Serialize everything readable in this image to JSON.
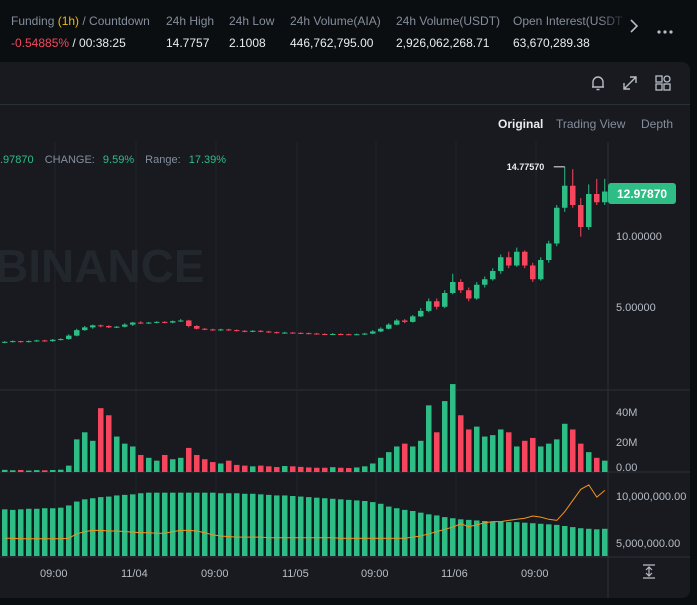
{
  "stats": [
    {
      "label_main": "Funding ",
      "label_accent": "(1h)",
      "label_rest": " / Countdown",
      "value_neg": "-0.54885%",
      "value_rest": " / 00:38:25"
    },
    {
      "label": "24h High",
      "value": "14.7757"
    },
    {
      "label": "24h Low",
      "value": "2.1008"
    },
    {
      "label": "24h Volume(AIA)",
      "value": "446,762,795.00"
    },
    {
      "label": "24h Volume(USDT)",
      "value": "2,926,062,268.71"
    },
    {
      "label": "Open Interest(USDT)",
      "value": "63,670,289.38"
    }
  ],
  "nav": {
    "more_icon": "chevron-right-icon",
    "menu_icon": "ellipsis-icon"
  },
  "toolbar": {
    "icons": [
      "bell-icon",
      "expand-icon",
      "layout-grid-icon"
    ]
  },
  "tabs": [
    "Original",
    "Trading View",
    "Depth"
  ],
  "active_tab": "Original",
  "info": {
    "price": ".97870",
    "change_label": "CHANGE:",
    "change_value": "9.59%",
    "range_label": "Range:",
    "range_value": "17.39%"
  },
  "watermark": "BINANCE",
  "high_marker": "14.77570",
  "last_price": "12.97870",
  "price_axis": [
    "10.00000",
    "5.00000"
  ],
  "volume_axis": [
    "40M",
    "20M",
    "0.00"
  ],
  "oi_axis": [
    "10,000,000.00",
    "5,000,000.00"
  ],
  "time_axis": [
    "09:00",
    "11/04",
    "09:00",
    "11/05",
    "09:00",
    "11/06",
    "09:00"
  ],
  "colors": {
    "up": "#2ebd85",
    "down": "#f6465d",
    "accent": "#f0b90b",
    "line": "#f7931a",
    "last_price_bg": "#2ebd85"
  },
  "chart_data": {
    "type": "candlestick",
    "price_ylim": [
      0,
      16
    ],
    "candles": [
      [
        2.0,
        2.05,
        2.1,
        1.95
      ],
      [
        2.05,
        2.1,
        2.15,
        2.0
      ],
      [
        2.1,
        2.05,
        2.12,
        1.98
      ],
      [
        2.05,
        2.1,
        2.15,
        2.0
      ],
      [
        2.1,
        2.15,
        2.2,
        2.05
      ],
      [
        2.15,
        2.1,
        2.2,
        2.05
      ],
      [
        2.1,
        2.2,
        2.25,
        2.05
      ],
      [
        2.2,
        2.25,
        2.3,
        2.15
      ],
      [
        2.25,
        2.5,
        2.6,
        2.2
      ],
      [
        2.5,
        2.9,
        3.0,
        2.45
      ],
      [
        2.9,
        3.1,
        3.2,
        2.85
      ],
      [
        3.1,
        3.25,
        3.3,
        3.0
      ],
      [
        3.25,
        3.2,
        3.3,
        3.1
      ],
      [
        3.2,
        3.1,
        3.25,
        3.05
      ],
      [
        3.1,
        3.15,
        3.2,
        3.05
      ],
      [
        3.15,
        3.3,
        3.4,
        3.1
      ],
      [
        3.3,
        3.45,
        3.5,
        3.2
      ],
      [
        3.45,
        3.4,
        3.55,
        3.35
      ],
      [
        3.4,
        3.45,
        3.5,
        3.35
      ],
      [
        3.45,
        3.5,
        3.55,
        3.4
      ],
      [
        3.5,
        3.45,
        3.55,
        3.4
      ],
      [
        3.45,
        3.55,
        3.6,
        3.4
      ],
      [
        3.55,
        3.6,
        3.7,
        3.5
      ],
      [
        3.6,
        3.2,
        3.65,
        3.1
      ],
      [
        3.2,
        3.0,
        3.25,
        2.95
      ],
      [
        3.0,
        2.95,
        3.05,
        2.9
      ],
      [
        2.95,
        2.9,
        3.0,
        2.85
      ],
      [
        2.9,
        2.95,
        3.0,
        2.85
      ],
      [
        2.95,
        2.9,
        3.0,
        2.85
      ],
      [
        2.9,
        2.85,
        2.95,
        2.8
      ],
      [
        2.85,
        2.8,
        2.9,
        2.75
      ],
      [
        2.8,
        2.85,
        2.9,
        2.75
      ],
      [
        2.85,
        2.8,
        2.9,
        2.75
      ],
      [
        2.8,
        2.75,
        2.85,
        2.7
      ],
      [
        2.75,
        2.7,
        2.8,
        2.65
      ],
      [
        2.7,
        2.72,
        2.78,
        2.65
      ],
      [
        2.72,
        2.7,
        2.76,
        2.65
      ],
      [
        2.7,
        2.68,
        2.74,
        2.62
      ],
      [
        2.68,
        2.65,
        2.72,
        2.6
      ],
      [
        2.65,
        2.62,
        2.7,
        2.58
      ],
      [
        2.62,
        2.6,
        2.66,
        2.55
      ],
      [
        2.6,
        2.62,
        2.68,
        2.56
      ],
      [
        2.62,
        2.6,
        2.66,
        2.55
      ],
      [
        2.6,
        2.58,
        2.64,
        2.54
      ],
      [
        2.58,
        2.6,
        2.65,
        2.55
      ],
      [
        2.6,
        2.65,
        2.7,
        2.55
      ],
      [
        2.65,
        2.8,
        2.9,
        2.6
      ],
      [
        2.8,
        3.0,
        3.1,
        2.75
      ],
      [
        3.0,
        3.3,
        3.4,
        2.95
      ],
      [
        3.3,
        3.6,
        3.7,
        3.25
      ],
      [
        3.6,
        3.5,
        3.7,
        3.4
      ],
      [
        3.5,
        3.9,
        4.0,
        3.45
      ],
      [
        3.9,
        4.3,
        4.5,
        3.85
      ],
      [
        4.3,
        5.0,
        5.2,
        4.2
      ],
      [
        5.0,
        4.6,
        5.2,
        4.4
      ],
      [
        4.6,
        5.6,
        5.8,
        4.5
      ],
      [
        5.6,
        6.4,
        7.0,
        5.5
      ],
      [
        6.4,
        5.8,
        6.6,
        5.6
      ],
      [
        5.8,
        5.2,
        6.0,
        5.0
      ],
      [
        5.2,
        6.2,
        6.4,
        5.1
      ],
      [
        6.2,
        6.6,
        6.8,
        6.0
      ],
      [
        6.6,
        7.2,
        7.4,
        6.5
      ],
      [
        7.2,
        8.2,
        8.4,
        7.0
      ],
      [
        8.2,
        7.6,
        8.6,
        7.4
      ],
      [
        7.6,
        8.6,
        8.9,
        7.5
      ],
      [
        8.6,
        7.6,
        8.7,
        7.4
      ],
      [
        7.6,
        6.6,
        7.8,
        6.4
      ],
      [
        6.6,
        8.0,
        8.2,
        6.5
      ],
      [
        8.0,
        9.2,
        9.4,
        7.8
      ],
      [
        9.2,
        11.8,
        12.0,
        9.0
      ],
      [
        11.8,
        13.4,
        14.7757,
        11.5
      ],
      [
        13.4,
        12.0,
        14.6,
        11.8
      ],
      [
        12.0,
        10.4,
        12.5,
        9.7
      ],
      [
        10.4,
        12.8,
        13.5,
        10.2
      ],
      [
        12.8,
        12.2,
        13.9,
        12.0
      ],
      [
        12.2,
        12.9787,
        13.9,
        12.0
      ]
    ],
    "volume_ylim": [
      0,
      55000000
    ],
    "volume": [
      1500000,
      1200000,
      1400000,
      1000000,
      1300000,
      1200000,
      1400000,
      1600000,
      4500000,
      23000000,
      28000000,
      22000000,
      45000000,
      40000000,
      25000000,
      20000000,
      18000000,
      12000000,
      10000000,
      8000000,
      12000000,
      9000000,
      10000000,
      17000000,
      12000000,
      9000000,
      7000000,
      6000000,
      8000000,
      5000000,
      4500000,
      4000000,
      4500000,
      4000000,
      3500000,
      4200000,
      4000000,
      3600000,
      3200000,
      3000000,
      3000000,
      3400000,
      3000000,
      2800000,
      3200000,
      4000000,
      6000000,
      10000000,
      14000000,
      18000000,
      20000000,
      18000000,
      22000000,
      47000000,
      28000000,
      50000000,
      62000000,
      40000000,
      30000000,
      32000000,
      25000000,
      26000000,
      30000000,
      28000000,
      18000000,
      22000000,
      24000000,
      18000000,
      20000000,
      23000000,
      34000000,
      30000000,
      20000000,
      14000000,
      10000000,
      8000000
    ],
    "oi_ylim": [
      4000000,
      11200000
    ],
    "open_interest": [
      8200000,
      8150000,
      8200000,
      8250000,
      8250000,
      8300000,
      8300000,
      8350000,
      8550000,
      8900000,
      9100000,
      9200000,
      9300000,
      9350000,
      9450000,
      9500000,
      9550000,
      9650000,
      9700000,
      9700000,
      9700000,
      9700000,
      9700000,
      9700000,
      9700000,
      9700000,
      9700000,
      9650000,
      9650000,
      9650000,
      9600000,
      9600000,
      9550000,
      9500000,
      9450000,
      9450000,
      9400000,
      9350000,
      9300000,
      9250000,
      9200000,
      9150000,
      9100000,
      9050000,
      9000000,
      8950000,
      8850000,
      8700000,
      8450000,
      8300000,
      8150000,
      8050000,
      7900000,
      7750000,
      7650000,
      7500000,
      7400000,
      7300000,
      7250000,
      7200000,
      7150000,
      7100000,
      7100000,
      7050000,
      7050000,
      7000000,
      6950000,
      6900000,
      6850000,
      6800000,
      6700000,
      6600000,
      6500000,
      6450000,
      6400000,
      6450000
    ],
    "line_series": [
      5600000,
      5600000,
      5550000,
      5550000,
      5550000,
      5550000,
      5550000,
      5550000,
      5600000,
      6000000,
      6200000,
      6300000,
      6300000,
      6250000,
      6250000,
      6200000,
      6150000,
      6100000,
      6100000,
      6050000,
      6050000,
      6200000,
      6300000,
      6300000,
      6250000,
      6100000,
      5900000,
      5800000,
      5750000,
      5700000,
      5700000,
      5700000,
      5700000,
      5650000,
      5650000,
      5650000,
      5650000,
      5650000,
      5650000,
      5650000,
      5650000,
      5650000,
      5600000,
      5600000,
      5600000,
      5600000,
      5600000,
      5600000,
      5600000,
      5600000,
      5600000,
      5700000,
      5800000,
      6000000,
      6200000,
      6400000,
      6600000,
      6900000,
      6650000,
      6800000,
      7000000,
      7100000,
      7100000,
      7200000,
      7300000,
      7400000,
      7600000,
      7500000,
      7300000,
      7200000,
      8000000,
      9000000,
      10000000,
      10400000,
      9300000,
      9900000
    ]
  }
}
